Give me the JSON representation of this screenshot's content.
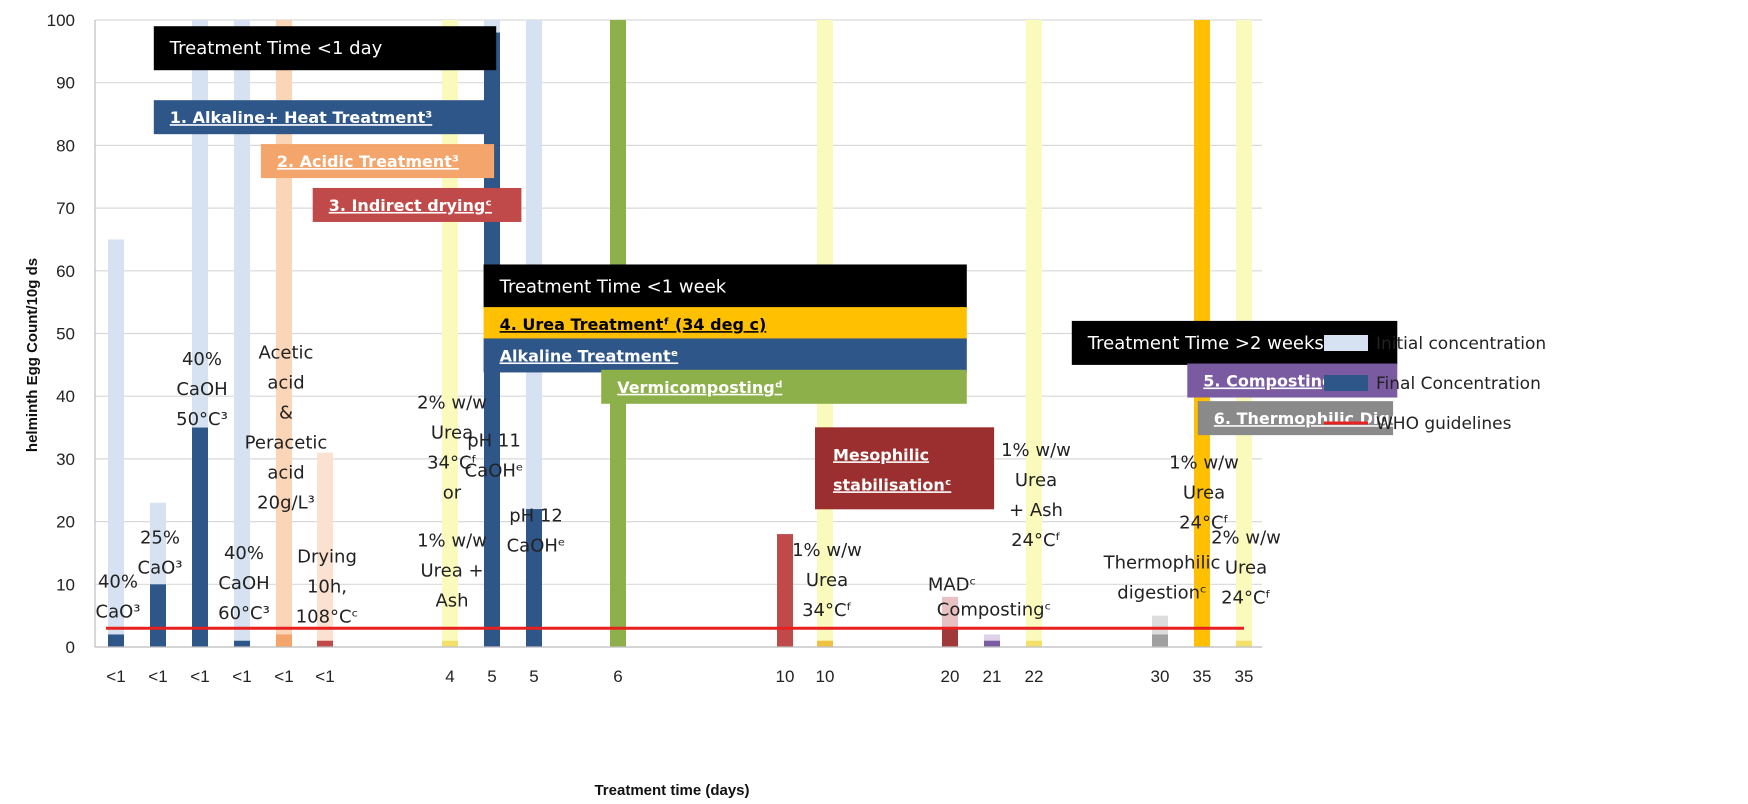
{
  "chart_data": {
    "type": "bar",
    "xlabel": "Treatment time (days)",
    "ylabel": "helminth Egg Count/10g ds",
    "ylim": [
      0,
      100
    ],
    "yticks": [
      0,
      10,
      20,
      30,
      40,
      50,
      60,
      70,
      80,
      90,
      100
    ],
    "grid": true,
    "legend_position": "right",
    "categories": [
      "<1",
      "<1",
      "<1",
      "<1",
      "<1",
      "<1",
      "4",
      "5",
      "5",
      "6",
      "10",
      "10",
      "20",
      "21",
      "22",
      "30",
      "35",
      "35"
    ],
    "series": [
      {
        "name": "Initial concentration",
        "color": "#d6e2f1",
        "values": [
          65,
          23,
          100,
          100,
          100,
          31,
          100,
          100,
          100,
          100,
          18,
          100,
          8,
          2,
          100,
          5,
          100,
          100
        ],
        "bar_colors": [
          "#d6e2f1",
          "#d6e2f1",
          "#d6e2f1",
          "#d6e2f1",
          "#fbd5b8",
          "#fbe1d0",
          "#fafabc",
          "#d6e2f1",
          "#d6e2f1",
          "#8db04a",
          "#d88a8a",
          "#fafabc",
          "#e8c2c2",
          "#ddd2e8",
          "#fafabc",
          "#dddddd",
          "#fec000",
          "#fafabc"
        ]
      },
      {
        "name": "Final Concentration",
        "color": "#2f5689",
        "values": [
          2,
          10,
          35,
          1,
          2,
          1,
          1,
          98,
          22,
          0,
          18,
          1,
          3,
          1,
          1,
          2,
          100,
          1
        ],
        "bar_colors": [
          "#2f5689",
          "#2f5689",
          "#2f5689",
          "#2f5689",
          "#f4a56b",
          "#c04a4a",
          "#f3e06a",
          "#2f5689",
          "#2f5689",
          "#8db04a",
          "#c04a4a",
          "#f0c040",
          "#a03a3a",
          "#7a5aa0",
          "#f3e06a",
          "#a0a0a0",
          "#fec000",
          "#f3e06a"
        ]
      }
    ],
    "lines": [
      {
        "name": "WHO guidelines",
        "color": "#e8201e",
        "value": 3
      }
    ],
    "annotations": [
      {
        "lines": [
          "40%",
          "CaO³"
        ],
        "cat": 0,
        "y": 9.5
      },
      {
        "lines": [
          "25%",
          "CaO³"
        ],
        "cat": 1,
        "y": 16.5
      },
      {
        "lines": [
          "40%",
          "CaOH",
          "50°C³"
        ],
        "cat": 2,
        "y": 45
      },
      {
        "lines": [
          "40%",
          "CaOH",
          "60°C³"
        ],
        "cat": 3,
        "y": 14
      },
      {
        "lines": [
          "Acetic",
          "acid",
          "&",
          "Peracetic",
          "acid",
          "20g/L³"
        ],
        "cat": 4,
        "y": 46
      },
      {
        "lines": [
          "Drying",
          "10h,",
          "108°Cᶜ"
        ],
        "cat": 5,
        "y": 13.5
      },
      {
        "lines": [
          "2% w/w",
          "Urea",
          "34°Cᶠ",
          "or"
        ],
        "cat": 6,
        "y": 38
      },
      {
        "lines": [
          "1% w/w",
          "Urea +",
          "Ash"
        ],
        "cat": 6,
        "y": 16
      },
      {
        "lines": [
          "pH 11",
          "CaOHᵉ"
        ],
        "cat": 7,
        "y": 32
      },
      {
        "lines": [
          "pH 12",
          "CaOHᵉ"
        ],
        "cat": 8,
        "y": 20
      },
      {
        "lines": [
          "1% w/w",
          "Urea",
          "34°Cᶠ"
        ],
        "cat": 11,
        "y": 14.5
      },
      {
        "lines": [
          "MADᶜ"
        ],
        "cat": 12,
        "y": 9
      },
      {
        "lines": [
          "Compostingᶜ"
        ],
        "cat": 13,
        "y": 5
      },
      {
        "lines": [
          "1% w/w",
          "Urea",
          "+ Ash",
          "24°Cᶠ"
        ],
        "cat": 14,
        "y": 30.5
      },
      {
        "lines": [
          "1% w/w",
          "Urea",
          "24°Cᶠ"
        ],
        "cat": 16,
        "y": 28.5
      },
      {
        "lines": [
          "Thermophilic",
          "digestionᶜ"
        ],
        "cat": 15,
        "y": 12.5
      },
      {
        "lines": [
          "2% w/w",
          "Urea",
          "24°Cᶠ"
        ],
        "cat": 17,
        "y": 16.5
      }
    ],
    "label_boxes": [
      {
        "text": "Treatment Time  <1 day",
        "bg": "#000000",
        "fg": "#ffffff",
        "x0": 0.9,
        "x1": 7.1,
        "y": 95.5,
        "style": "normal"
      },
      {
        "text": "1. Alkaline+ Heat Treatment³",
        "bg": "#2f5689",
        "fg": "#ffffff",
        "x0": 0.9,
        "x1": 7.1,
        "y": 84.5,
        "style": "bold"
      },
      {
        "text": "2. Acidic Treatment³",
        "bg": "#f4a56b",
        "fg": "#ffffff",
        "x0": 3.45,
        "x1": 7.05,
        "y": 77.5,
        "style": "bold"
      },
      {
        "text": "3. Indirect dryingᶜ",
        "bg": "#c04a4a",
        "fg": "#ffffff",
        "x0": 4.7,
        "x1": 7.7,
        "y": 70.5,
        "style": "bold"
      },
      {
        "text": "Treatment Time  <1 week",
        "bg": "#000000",
        "fg": "#ffffff",
        "x0": 6.8,
        "x1": 12.4,
        "y": 57.5,
        "style": "normal"
      },
      {
        "text": "4. Urea Treatmentᶠ (34 deg c)",
        "bg": "#fec000",
        "fg": "#000000",
        "x0": 6.8,
        "x1": 12.4,
        "y": 51.5,
        "style": "bold"
      },
      {
        "text": "Alkaline  Treatmentᵉ",
        "bg": "#2f5689",
        "fg": "#ffffff",
        "x0": 6.8,
        "x1": 12.4,
        "y": 46.5,
        "style": "bold"
      },
      {
        "text": "Vermicompostingᵈ",
        "bg": "#8db04a",
        "fg": "#ffffff",
        "x0": 8.8,
        "x1": 12.4,
        "y": 41.5,
        "style": "bold"
      },
      {
        "text": "Mesophilic",
        "text2": "stabilisationᶜ",
        "bg": "#9b2f2f",
        "fg": "#ffffff",
        "x0": 10.75,
        "x1": 13.05,
        "y": 28.5,
        "style": "bold2"
      },
      {
        "text": "Treatment Time  >2 weeks",
        "bg": "#000000",
        "fg": "#ffffff",
        "x0": 14.3,
        "x1": 20.65,
        "y": 48.5,
        "style": "normal"
      },
      {
        "text": "5. Compostingᶜ",
        "bg": "#7a5aa0",
        "fg": "#ffffff",
        "x0": 15.65,
        "x1": 20.65,
        "y": 42.5,
        "style": "bold"
      },
      {
        "text": "6. Thermophilic Digestionᶜ",
        "bg": "#8a8a8a",
        "fg": "#ffffff",
        "x0": 15.9,
        "x1": 20.55,
        "y": 36.5,
        "style": "bold"
      }
    ]
  }
}
